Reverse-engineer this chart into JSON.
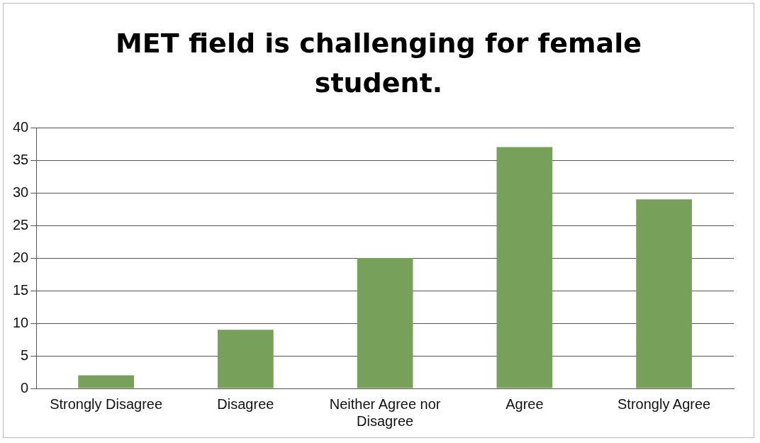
{
  "chart_data": {
    "type": "bar",
    "title": "MET field is challenging for female student.",
    "categories": [
      "Strongly Disagree",
      "Disagree",
      "Neither Agree nor Disagree",
      "Agree",
      "Strongly Agree"
    ],
    "values": [
      2,
      9,
      20,
      37,
      29
    ],
    "color": "#77a05a",
    "ylim": [
      0,
      40
    ],
    "yticks": [
      0,
      5,
      10,
      15,
      20,
      25,
      30,
      35,
      40
    ],
    "grid": "y",
    "legend": false
  }
}
